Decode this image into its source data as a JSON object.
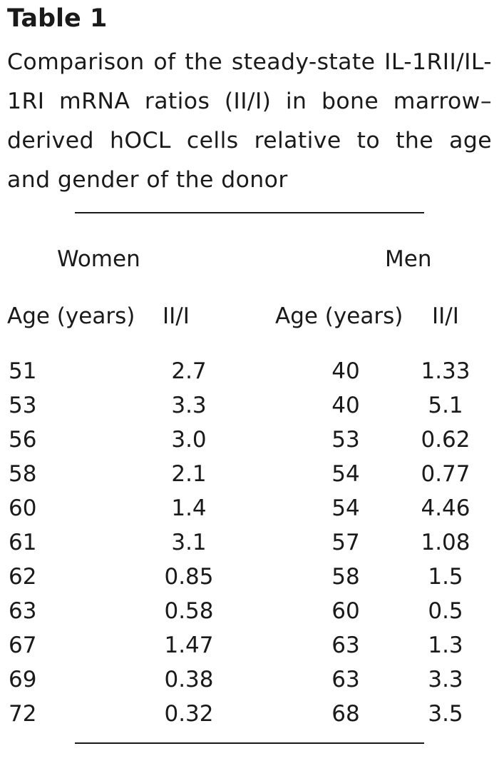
{
  "table": {
    "label": "Table 1",
    "caption": "Comparison of the steady-state IL-1RII/IL-1RI mRNA ratios (II/I) in bone marrow–derived hOCL cells relative to the age and gender of the donor",
    "groups": {
      "women": "Women",
      "men": "Men"
    },
    "columns": {
      "women_age": "Age (years)",
      "women_ratio": "II/I",
      "men_age": "Age (years)",
      "men_ratio": "II/I"
    },
    "rows": [
      {
        "women_age": "51",
        "women_ratio": "2.7",
        "men_age": "40",
        "men_ratio": "1.33"
      },
      {
        "women_age": "53",
        "women_ratio": "3.3",
        "men_age": "40",
        "men_ratio": "5.1"
      },
      {
        "women_age": "56",
        "women_ratio": "3.0",
        "men_age": "53",
        "men_ratio": "0.62"
      },
      {
        "women_age": "58",
        "women_ratio": "2.1",
        "men_age": "54",
        "men_ratio": "0.77"
      },
      {
        "women_age": "60",
        "women_ratio": "1.4",
        "men_age": "54",
        "men_ratio": "4.46"
      },
      {
        "women_age": "61",
        "women_ratio": "3.1",
        "men_age": "57",
        "men_ratio": "1.08"
      },
      {
        "women_age": "62",
        "women_ratio": "0.85",
        "men_age": "58",
        "men_ratio": "1.5"
      },
      {
        "women_age": "63",
        "women_ratio": "0.58",
        "men_age": "60",
        "men_ratio": "0.5"
      },
      {
        "women_age": "67",
        "women_ratio": "1.47",
        "men_age": "63",
        "men_ratio": "1.3"
      },
      {
        "women_age": "69",
        "women_ratio": "0.38",
        "men_age": "63",
        "men_ratio": "3.3"
      },
      {
        "women_age": "72",
        "women_ratio": "0.32",
        "men_age": "68",
        "men_ratio": "3.5"
      }
    ]
  }
}
